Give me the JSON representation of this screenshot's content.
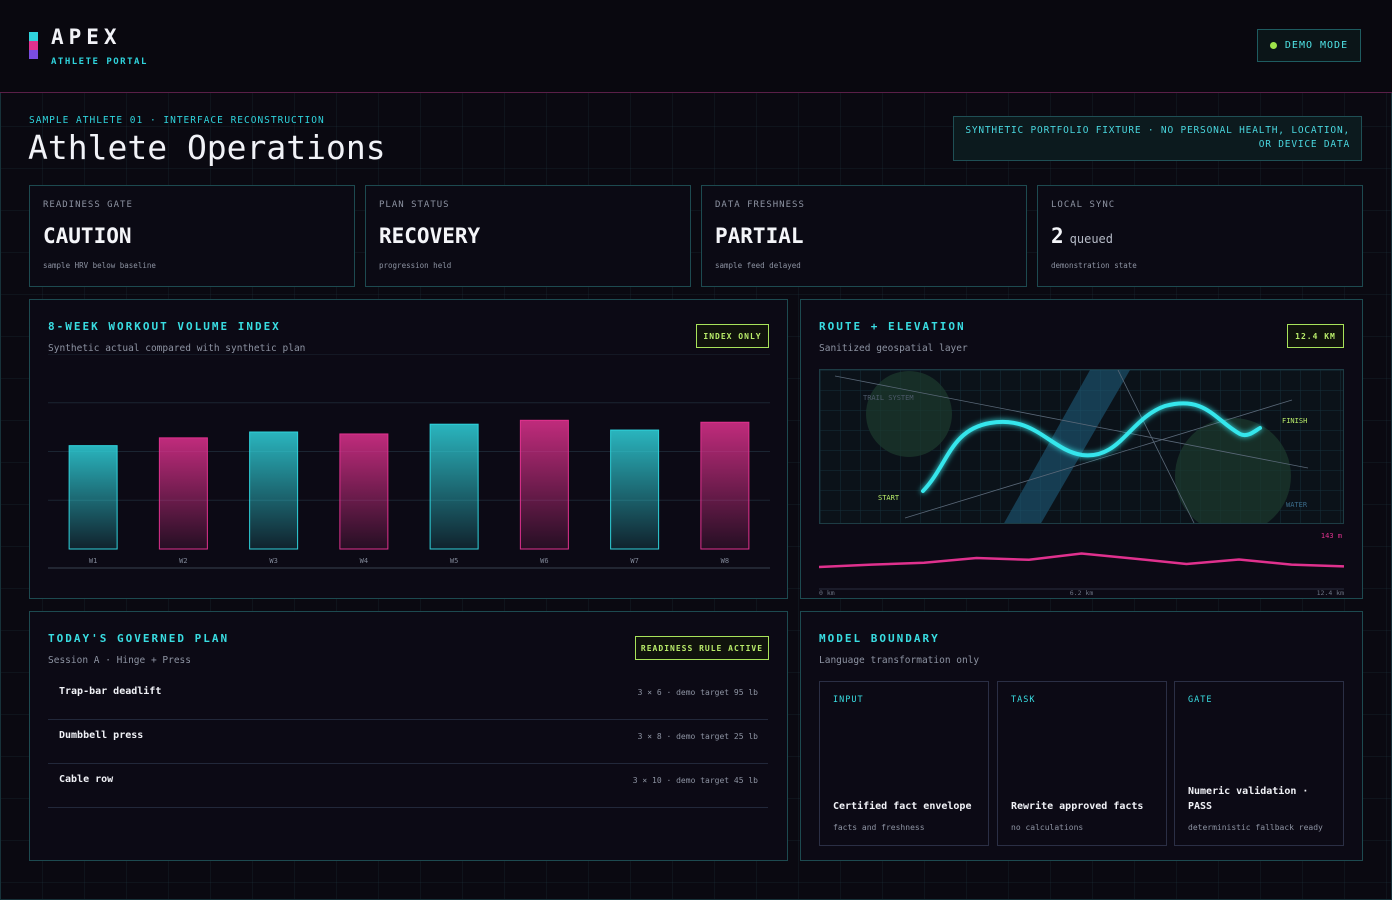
{
  "app": {
    "brand": "APEX",
    "subtitle": "ATHLETE PORTAL",
    "demo_label": "DEMO MODE",
    "accent": "#2fd3dc",
    "magenta": "#e0318e",
    "lime": "#a8e35a"
  },
  "page": {
    "eyebrow": "SAMPLE ATHLETE 01 · INTERFACE RECONSTRUCTION",
    "title": "Athlete Operations",
    "notice": "SYNTHETIC PORTFOLIO FIXTURE · NO PERSONAL HEALTH, LOCATION, OR DEVICE DATA"
  },
  "stats": [
    {
      "label": "READINESS GATE",
      "value": "CAUTION",
      "unit": "",
      "note": "sample HRV below baseline"
    },
    {
      "label": "PLAN STATUS",
      "value": "RECOVERY",
      "unit": "",
      "note": "progression held"
    },
    {
      "label": "DATA FRESHNESS",
      "value": "PARTIAL",
      "unit": "",
      "note": "sample feed delayed"
    },
    {
      "label": "LOCAL SYNC",
      "value": "2",
      "unit": "queued",
      "note": "demonstration state"
    }
  ],
  "volume": {
    "title": "8-WEEK WORKOUT VOLUME INDEX",
    "subtitle": "Synthetic actual compared with synthetic plan",
    "chip": "INDEX ONLY"
  },
  "chart_data": {
    "type": "bar",
    "categories": [
      "W1",
      "W2",
      "W3",
      "W4",
      "W5",
      "W6",
      "W7",
      "W8"
    ],
    "values": [
      53,
      57,
      60,
      59,
      64,
      66,
      61,
      65
    ],
    "series_colors": [
      "#2fd3dc",
      "#e0318e",
      "#2fd3dc",
      "#e0318e",
      "#2fd3dc",
      "#e0318e",
      "#2fd3dc",
      "#e0318e"
    ],
    "ylim": [
      0,
      100
    ],
    "grid": true,
    "title": "8-WEEK WORKOUT VOLUME INDEX"
  },
  "route": {
    "title": "ROUTE + ELEVATION",
    "subtitle": "Sanitized geospatial layer",
    "chip": "12.4 KM",
    "map_labels": {
      "trail": "TRAIL SYSTEM",
      "start": "START",
      "finish": "FINISH",
      "water": "WATER"
    },
    "elevation_max_label": "143 m",
    "distance_ticks": [
      "0 km",
      "6.2 km",
      "12.4 km"
    ],
    "elevation_profile": [
      10,
      18,
      24,
      40,
      34,
      55,
      38,
      20,
      35,
      18,
      12
    ],
    "elevation_domain": [
      0,
      100
    ]
  },
  "plan": {
    "title": "TODAY'S GOVERNED PLAN",
    "subtitle": "Session A · Hinge + Press",
    "chip": "READINESS RULE ACTIVE",
    "exercises": [
      {
        "name": "Trap-bar deadlift",
        "detail": "3 × 6 · demo target 95 lb"
      },
      {
        "name": "Dumbbell press",
        "detail": "3 × 8 · demo target 25 lb"
      },
      {
        "name": "Cable row",
        "detail": "3 × 10 · demo target 45 lb"
      }
    ]
  },
  "model": {
    "title": "MODEL BOUNDARY",
    "subtitle": "Language transformation only",
    "boxes": [
      {
        "kicker": "INPUT",
        "title": "Certified fact envelope",
        "note": "facts and freshness"
      },
      {
        "kicker": "TASK",
        "title": "Rewrite approved facts",
        "note": "no calculations"
      },
      {
        "kicker": "GATE",
        "title": "Numeric validation · PASS",
        "note": "deterministic fallback ready"
      }
    ]
  }
}
